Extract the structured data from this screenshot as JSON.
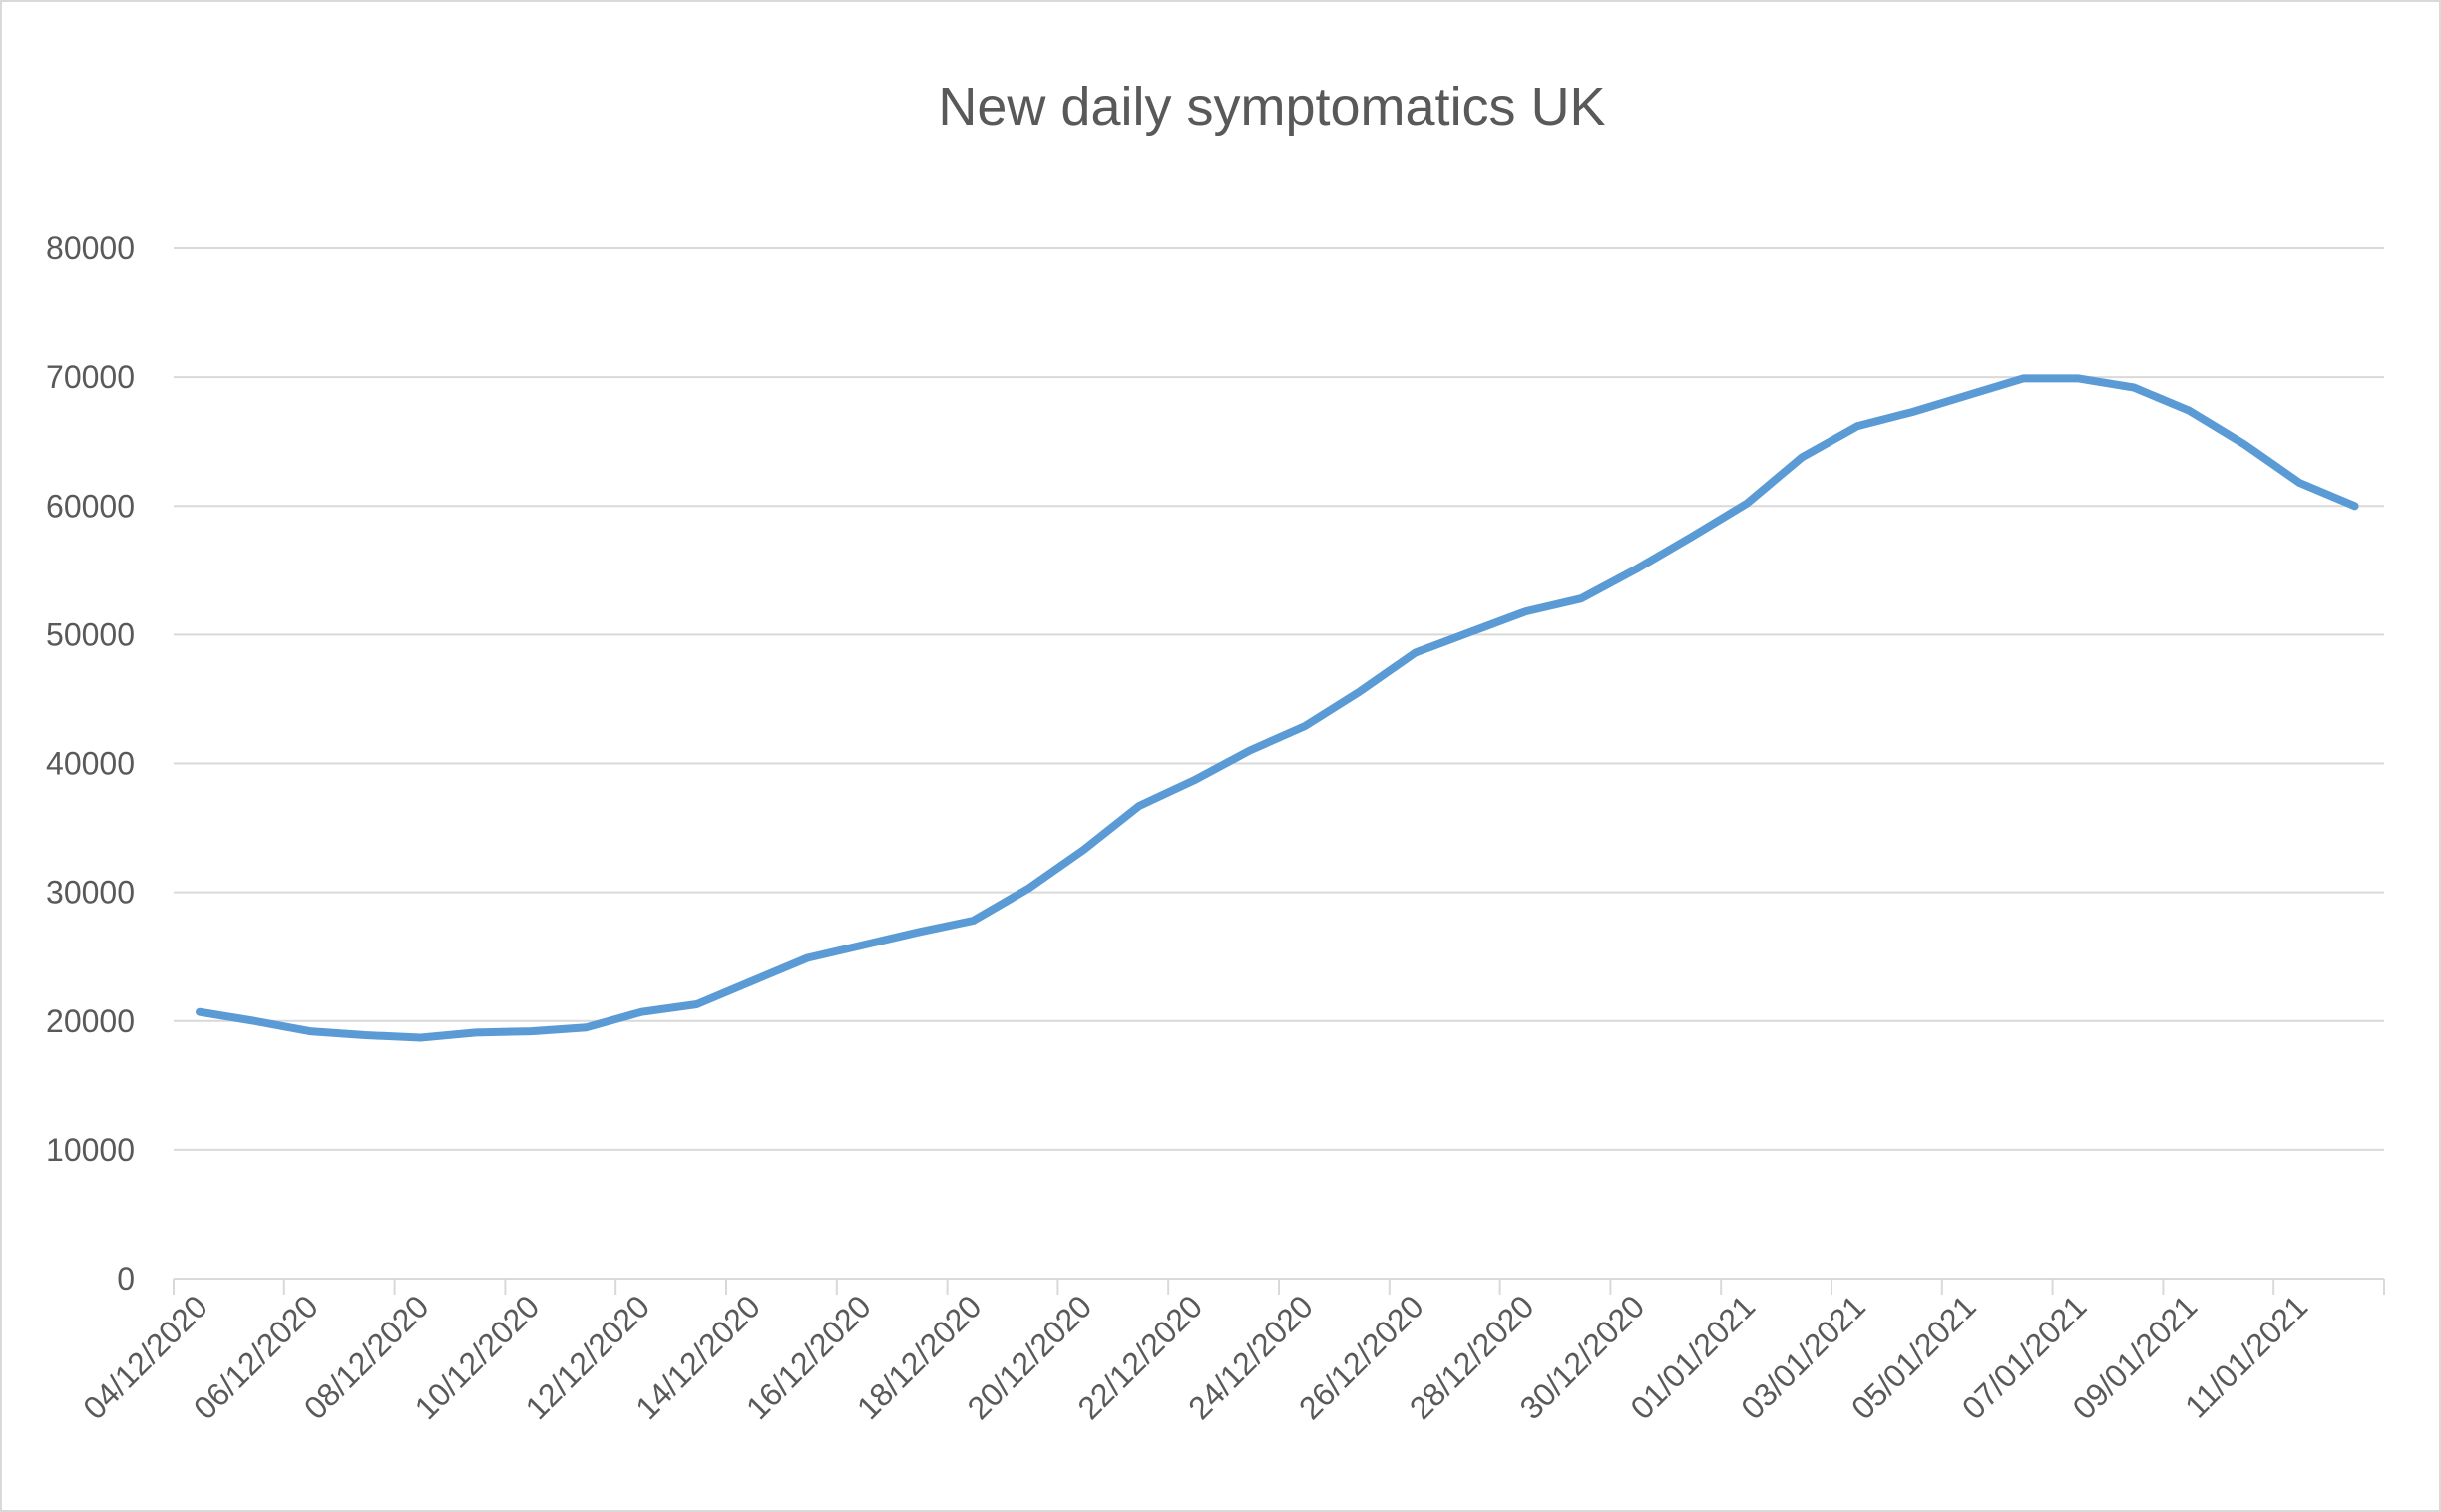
{
  "chart_data": {
    "type": "line",
    "title": "New daily symptomatics UK",
    "xlabel": "",
    "ylabel": "",
    "ylim": [
      0,
      80000
    ],
    "yticks": [
      0,
      10000,
      20000,
      30000,
      40000,
      50000,
      60000,
      70000,
      80000
    ],
    "grid": true,
    "legend": "none",
    "x_tick_labels": [
      "04/12/2020",
      "06/12/2020",
      "08/12/2020",
      "10/12/2020",
      "12/12/2020",
      "14/12/2020",
      "16/12/2020",
      "18/12/2020",
      "20/12/2020",
      "22/12/2020",
      "24/12/2020",
      "26/12/2020",
      "28/12/2020",
      "30/12/2020",
      "01/01/2021",
      "03/01/2021",
      "05/01/2021",
      "07/01/2021",
      "09/01/2021",
      "11/01/2021"
    ],
    "series": [
      {
        "color": "#5b9bd5",
        "x": [
          "04/12/2020",
          "05/12/2020",
          "06/12/2020",
          "07/12/2020",
          "08/12/2020",
          "09/12/2020",
          "10/12/2020",
          "11/12/2020",
          "12/12/2020",
          "13/12/2020",
          "14/12/2020",
          "15/12/2020",
          "16/12/2020",
          "17/12/2020",
          "18/12/2020",
          "19/12/2020",
          "20/12/2020",
          "21/12/2020",
          "22/12/2020",
          "23/12/2020",
          "24/12/2020",
          "25/12/2020",
          "26/12/2020",
          "27/12/2020",
          "28/12/2020",
          "29/12/2020",
          "30/12/2020",
          "31/12/2020",
          "01/01/2021",
          "02/01/2021",
          "03/01/2021",
          "04/01/2021",
          "05/01/2021",
          "06/01/2021",
          "07/01/2021",
          "08/01/2021",
          "09/01/2021",
          "10/01/2021",
          "11/01/2021",
          "12/01/2021"
        ],
        "values": [
          20700,
          20000,
          19200,
          18900,
          18700,
          19100,
          19200,
          19500,
          20700,
          21300,
          23100,
          24900,
          25900,
          26900,
          27800,
          30300,
          33300,
          36700,
          38700,
          41000,
          42900,
          45600,
          48600,
          50200,
          51800,
          52800,
          55100,
          57600,
          60200,
          63800,
          66200,
          67300,
          68600,
          69900,
          69900,
          69200,
          67400,
          64800,
          61800,
          60000
        ]
      }
    ]
  }
}
